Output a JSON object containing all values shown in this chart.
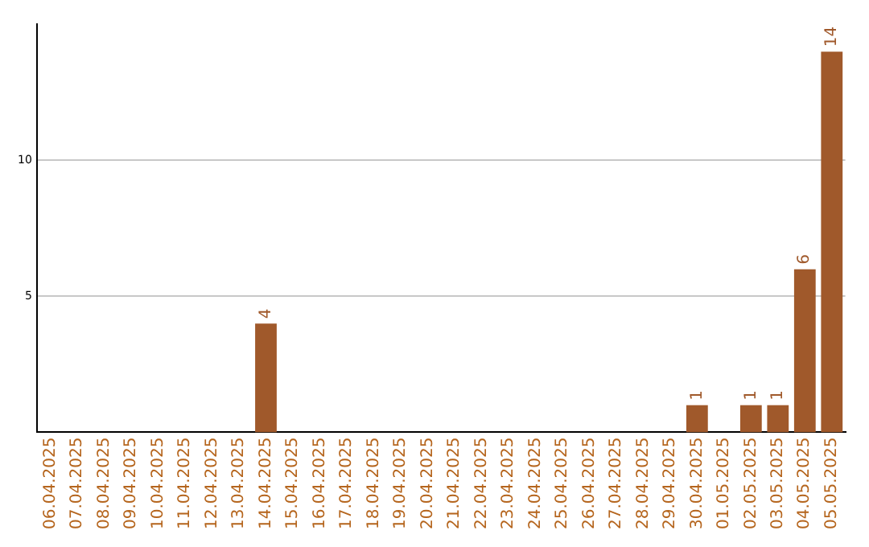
{
  "chart_data": {
    "type": "bar",
    "categories": [
      "06.04.2025",
      "07.04.2025",
      "08.04.2025",
      "09.04.2025",
      "10.04.2025",
      "11.04.2025",
      "12.04.2025",
      "13.04.2025",
      "14.04.2025",
      "15.04.2025",
      "16.04.2025",
      "17.04.2025",
      "18.04.2025",
      "19.04.2025",
      "20.04.2025",
      "21.04.2025",
      "22.04.2025",
      "23.04.2025",
      "24.04.2025",
      "25.04.2025",
      "26.04.2025",
      "27.04.2025",
      "28.04.2025",
      "29.04.2025",
      "30.04.2025",
      "01.05.2025",
      "02.05.2025",
      "03.05.2025",
      "04.05.2025",
      "05.05.2025"
    ],
    "values": [
      0,
      0,
      0,
      0,
      0,
      0,
      0,
      0,
      4,
      0,
      0,
      0,
      0,
      0,
      0,
      0,
      0,
      0,
      0,
      0,
      0,
      0,
      0,
      0,
      1,
      0,
      1,
      1,
      6,
      14
    ],
    "value_labels": [
      null,
      null,
      null,
      null,
      null,
      null,
      null,
      null,
      "4",
      null,
      null,
      null,
      null,
      null,
      null,
      null,
      null,
      null,
      null,
      null,
      null,
      null,
      null,
      null,
      "1",
      null,
      "1",
      "1",
      "6",
      "14"
    ],
    "color": "#a0592b",
    "ylim": [
      0,
      15
    ],
    "yticks": [
      5,
      10
    ],
    "grid": "y",
    "legend": false
  }
}
